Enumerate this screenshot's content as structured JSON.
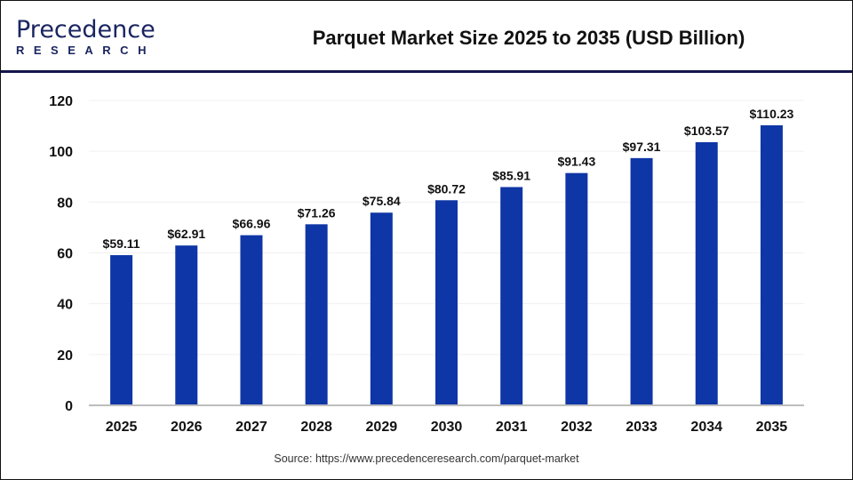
{
  "header": {
    "logo_text_top": "Precedence",
    "logo_text_bottom": "RESEARCH",
    "title": "Parquet Market Size 2025 to 2035 (USD Billion)"
  },
  "footer": {
    "source": "Source: https://www.precedenceresearch.com/parquet-market"
  },
  "colors": {
    "bar": "#0f36a6",
    "header_rule": "#14144a",
    "axis": "#bdbdbd"
  },
  "chart_data": {
    "type": "bar",
    "title": "Parquet Market Size 2025 to 2035 (USD Billion)",
    "xlabel": "",
    "ylabel": "",
    "categories": [
      "2025",
      "2026",
      "2027",
      "2028",
      "2029",
      "2030",
      "2031",
      "2032",
      "2033",
      "2034",
      "2035"
    ],
    "values": [
      59.11,
      62.91,
      66.96,
      71.26,
      75.84,
      80.72,
      85.91,
      91.43,
      97.31,
      103.57,
      110.23
    ],
    "data_labels": [
      "$59.11",
      "$62.91",
      "$66.96",
      "$71.26",
      "$75.84",
      "$80.72",
      "$85.91",
      "$91.43",
      "$97.31",
      "$103.57",
      "$110.23"
    ],
    "ylim": [
      0,
      120
    ],
    "yticks": [
      0,
      20,
      40,
      60,
      80,
      100,
      120
    ],
    "grid": true,
    "legend": "none"
  }
}
